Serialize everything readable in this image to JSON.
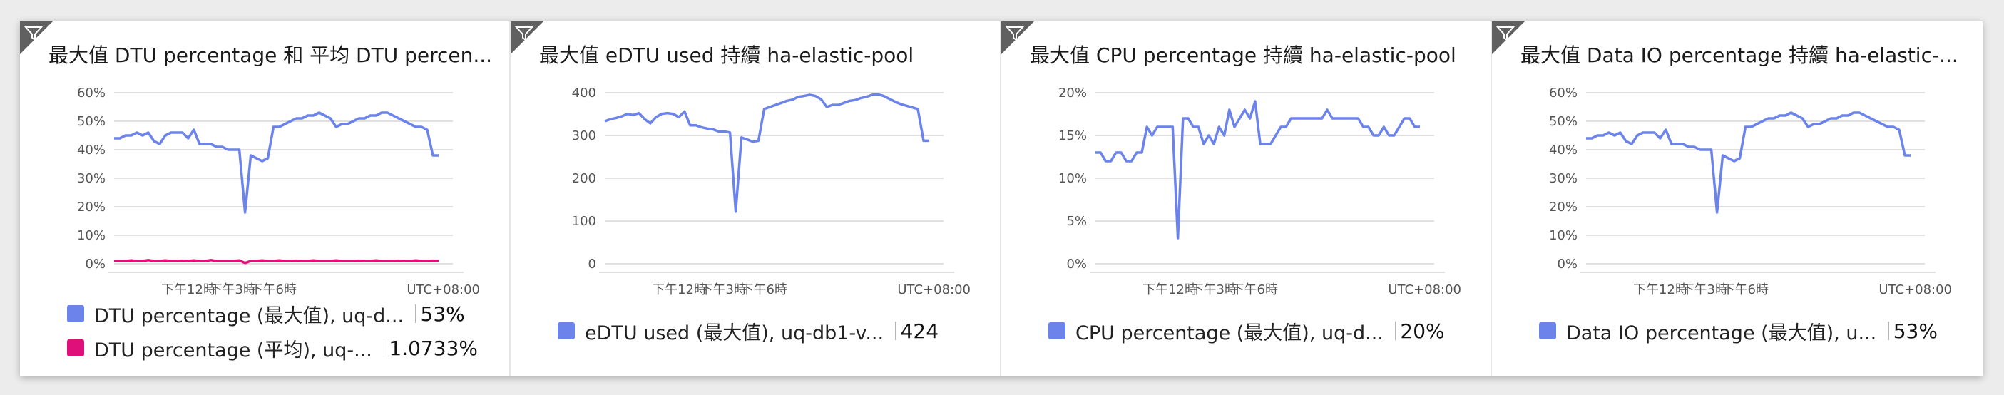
{
  "colors": {
    "primary_series": "#6b83ea",
    "secondary_series": "#e0107a",
    "grid": "#d6d6d6",
    "corner": "#606060"
  },
  "tiles": [
    {
      "title": "最大值 DTU percentage 和 平均 DTU percen...",
      "legend": [
        {
          "label": "DTU percentage (最大值), uq-d...",
          "value": "53%",
          "color": "#6b83ea"
        },
        {
          "label": "DTU percentage (平均), uq-...",
          "value": "1.0733%",
          "color": "#e0107a"
        }
      ]
    },
    {
      "title": "最大值 eDTU used 持續 ha-elastic-pool",
      "legend": [
        {
          "label": "eDTU used (最大值), uq-db1-v...",
          "value": "424",
          "color": "#6b83ea"
        }
      ]
    },
    {
      "title": "最大值 CPU percentage 持續 ha-elastic-pool",
      "legend": [
        {
          "label": "CPU percentage (最大值), uq-d...",
          "value": "20%",
          "color": "#6b83ea"
        }
      ]
    },
    {
      "title": "最大值 Data IO percentage 持續 ha-elastic-...",
      "legend": [
        {
          "label": "Data IO percentage (最大值), u...",
          "value": "53%",
          "color": "#6b83ea"
        }
      ]
    }
  ],
  "chart_data": [
    {
      "type": "line",
      "y_ticks": [
        "60%",
        "50%",
        "40%",
        "30%",
        "20%",
        "10%",
        "0%"
      ],
      "ylim": [
        0,
        60
      ],
      "x_ticks": [
        "下午12時",
        "下午3時",
        "下午6時"
      ],
      "timezone_label": "UTC+08:00",
      "series": [
        {
          "name": "DTU percentage (最大值), uq-d...",
          "color": "#6b83ea",
          "values": [
            44,
            44,
            45,
            45,
            46,
            45,
            46,
            43,
            42,
            45,
            46,
            46,
            46,
            44,
            47,
            42,
            42,
            42,
            41,
            41,
            40,
            40,
            40,
            18,
            38,
            37,
            36,
            37,
            48,
            48,
            49,
            50,
            51,
            51,
            52,
            52,
            53,
            52,
            51,
            48,
            49,
            49,
            50,
            51,
            51,
            52,
            52,
            53,
            53,
            52,
            51,
            50,
            49,
            48,
            48,
            47,
            38,
            38
          ]
        },
        {
          "name": "DTU percentage (平均), uq-...",
          "color": "#e0107a",
          "values": [
            1,
            1,
            1,
            1.2,
            1,
            1,
            1.3,
            1,
            1,
            1.2,
            1,
            1,
            1.1,
            1,
            1.2,
            1,
            1,
            1.3,
            1,
            1,
            1,
            1,
            1.2,
            0.3,
            1,
            1,
            1.2,
            1,
            1,
            1.2,
            1,
            1,
            1.1,
            1,
            1,
            1.2,
            1,
            1,
            1,
            1.2,
            1,
            1,
            1,
            1.1,
            1,
            1,
            1.2,
            1,
            1,
            1,
            1.1,
            1,
            1,
            1.2,
            1,
            1,
            1.1,
            1
          ]
        }
      ]
    },
    {
      "type": "line",
      "y_ticks": [
        "400",
        "300",
        "200",
        "100",
        "0"
      ],
      "ylim": [
        0,
        420
      ],
      "x_ticks": [
        "下午12時",
        "下午3時",
        "下午6時"
      ],
      "timezone_label": "UTC+08:00",
      "series": [
        {
          "name": "eDTU used (最大值), uq-db1-v...",
          "color": "#6b83ea",
          "values": [
            350,
            355,
            358,
            362,
            368,
            365,
            370,
            355,
            345,
            360,
            368,
            370,
            368,
            360,
            374,
            340,
            340,
            335,
            332,
            330,
            325,
            325,
            322,
            128,
            310,
            305,
            300,
            302,
            380,
            385,
            390,
            395,
            400,
            403,
            410,
            412,
            415,
            412,
            404,
            385,
            390,
            390,
            395,
            400,
            402,
            407,
            410,
            415,
            416,
            412,
            405,
            398,
            392,
            388,
            384,
            380,
            302,
            302
          ]
        }
      ]
    },
    {
      "type": "line",
      "y_ticks": [
        "20%",
        "15%",
        "10%",
        "5%",
        "0%"
      ],
      "ylim": [
        0,
        20
      ],
      "x_ticks": [
        "下午12時",
        "下午3時",
        "下午6時"
      ],
      "timezone_label": "UTC+08:00",
      "series": [
        {
          "name": "CPU percentage (最大值), uq-d...",
          "color": "#6b83ea",
          "values": [
            13,
            13,
            12,
            12,
            13,
            13,
            12,
            12,
            13,
            13,
            16,
            15,
            16,
            16,
            16,
            16,
            3,
            17,
            17,
            16,
            16,
            14,
            15,
            14,
            16,
            15,
            18,
            16,
            17,
            18,
            17,
            19,
            14,
            14,
            14,
            15,
            16,
            16,
            17,
            17,
            17,
            17,
            17,
            17,
            17,
            18,
            17,
            17,
            17,
            17,
            17,
            17,
            16,
            16,
            15,
            15,
            16,
            15,
            15,
            16,
            17,
            17,
            16,
            16
          ]
        }
      ]
    },
    {
      "type": "line",
      "y_ticks": [
        "60%",
        "50%",
        "40%",
        "30%",
        "20%",
        "10%",
        "0%"
      ],
      "ylim": [
        0,
        60
      ],
      "x_ticks": [
        "下午12時",
        "下午3時",
        "下午6時"
      ],
      "timezone_label": "UTC+08:00",
      "series": [
        {
          "name": "Data IO percentage (最大值), u...",
          "color": "#6b83ea",
          "values": [
            44,
            44,
            45,
            45,
            46,
            45,
            46,
            43,
            42,
            45,
            46,
            46,
            46,
            44,
            47,
            42,
            42,
            42,
            41,
            41,
            40,
            40,
            40,
            18,
            38,
            37,
            36,
            37,
            48,
            48,
            49,
            50,
            51,
            51,
            52,
            52,
            53,
            52,
            51,
            48,
            49,
            49,
            50,
            51,
            51,
            52,
            52,
            53,
            53,
            52,
            51,
            50,
            49,
            48,
            48,
            47,
            38,
            38
          ]
        }
      ]
    }
  ]
}
